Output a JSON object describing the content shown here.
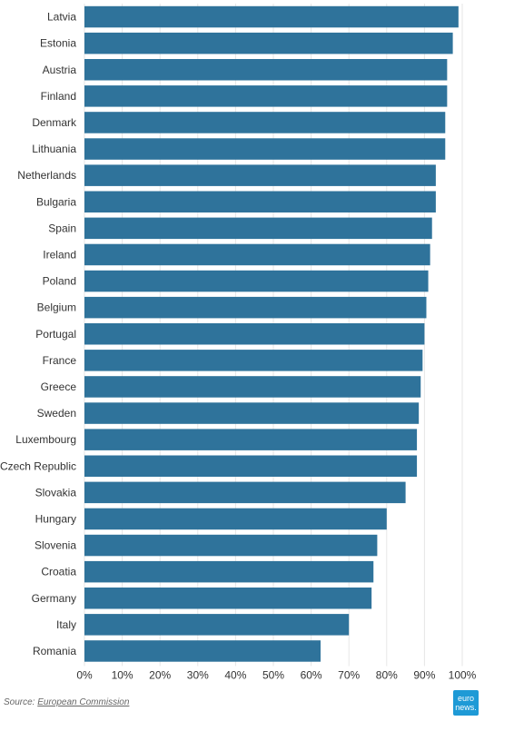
{
  "chart_data": {
    "type": "bar",
    "orientation": "horizontal",
    "categories": [
      "Latvia",
      "Estonia",
      "Austria",
      "Finland",
      "Denmark",
      "Lithuania",
      "Netherlands",
      "Bulgaria",
      "Spain",
      "Ireland",
      "Poland",
      "Belgium",
      "Portugal",
      "France",
      "Greece",
      "Sweden",
      "Luxembourg",
      "Czech Republic",
      "Slovakia",
      "Hungary",
      "Slovenia",
      "Croatia",
      "Germany",
      "Italy",
      "Romania"
    ],
    "values": [
      99,
      97.5,
      96,
      96,
      95.5,
      95.5,
      93,
      93,
      92,
      91.5,
      91,
      90.5,
      90,
      89.5,
      89,
      88.5,
      88,
      88,
      85,
      80,
      77.5,
      76.5,
      76,
      70,
      62.5
    ],
    "xlim": [
      0,
      100
    ],
    "xticks": [
      "0%",
      "10%",
      "20%",
      "30%",
      "40%",
      "50%",
      "60%",
      "70%",
      "80%",
      "90%",
      "100%"
    ],
    "grid": true,
    "bar_color": "#2f739b"
  },
  "source": {
    "prefix": "Source:",
    "link_text": "European Commission"
  },
  "logo": {
    "line1": "euro",
    "line2": "news."
  }
}
